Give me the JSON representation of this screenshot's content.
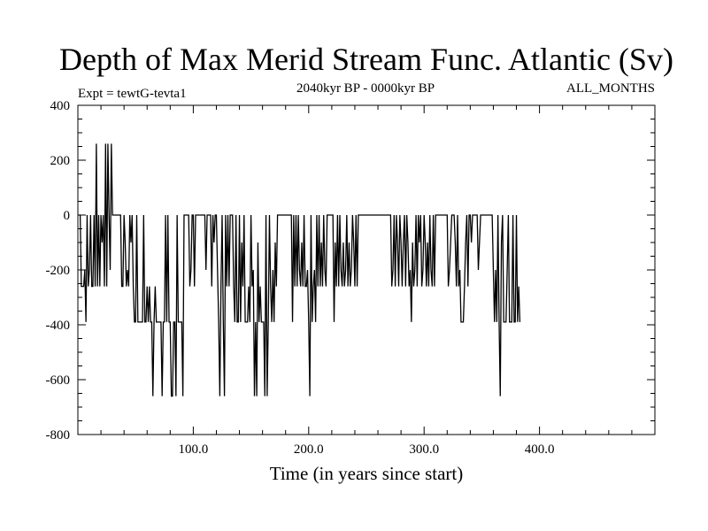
{
  "chart_data": {
    "type": "line",
    "title": "Depth of Max Merid Stream Func. Atlantic (Sv)",
    "subtitle_left": "Expt = tewtG-tevta1",
    "subtitle_center": "2040kyr BP - 0000kyr BP",
    "subtitle_right": "ALL_MONTHS",
    "xlabel": "Time (in years since start)",
    "ylabel": "",
    "xlim": [
      0,
      500
    ],
    "ylim": [
      -800,
      400
    ],
    "x_ticks": [
      {
        "value": 100,
        "label": "100.0"
      },
      {
        "value": 200,
        "label": "200.0"
      },
      {
        "value": 300,
        "label": "300.0"
      },
      {
        "value": 400,
        "label": "400.0"
      }
    ],
    "y_ticks": [
      {
        "value": 400,
        "label": "400"
      },
      {
        "value": 200,
        "label": "200"
      },
      {
        "value": 0,
        "label": "0"
      },
      {
        "value": -200,
        "label": "-200"
      },
      {
        "value": -400,
        "label": "-400"
      },
      {
        "value": -600,
        "label": "-600"
      },
      {
        "value": -800,
        "label": "-800"
      }
    ],
    "grid": false,
    "line_color": "#000000",
    "series": [
      {
        "x_start": 1,
        "x_step": 1,
        "values": [
          0,
          0,
          -260,
          -260,
          -260,
          -200,
          -390,
          0,
          -260,
          -200,
          0,
          -260,
          -260,
          0,
          -260,
          260,
          -260,
          0,
          -260,
          0,
          -100,
          0,
          -260,
          260,
          -260,
          260,
          0,
          -200,
          260,
          0,
          0,
          0,
          0,
          0,
          0,
          0,
          0,
          -260,
          -260,
          0,
          -100,
          -260,
          -200,
          -260,
          0,
          -100,
          0,
          -260,
          -390,
          -390,
          0,
          -390,
          -390,
          -390,
          -390,
          -390,
          0,
          -390,
          -390,
          -260,
          -390,
          -260,
          -390,
          -390,
          -660,
          -390,
          -260,
          -390,
          -390,
          -390,
          -390,
          -390,
          -660,
          -390,
          -390,
          0,
          -390,
          0,
          -390,
          -390,
          -660,
          -660,
          -390,
          -390,
          -660,
          0,
          -390,
          -390,
          -390,
          -390,
          -660,
          0,
          0,
          0,
          0,
          0,
          -260,
          -200,
          0,
          0,
          -260,
          0,
          0,
          0,
          0,
          0,
          0,
          0,
          0,
          0,
          -200,
          0,
          0,
          0,
          0,
          -260,
          0,
          -100,
          0,
          0,
          -200,
          -390,
          -660,
          -260,
          0,
          -390,
          -660,
          0,
          -260,
          0,
          -260,
          0,
          0,
          0,
          -260,
          -390,
          0,
          -390,
          -390,
          0,
          -390,
          -100,
          -260,
          0,
          -390,
          -390,
          -390,
          -260,
          -390,
          0,
          -260,
          -200,
          -660,
          -390,
          -660,
          -100,
          -390,
          -260,
          -390,
          -390,
          -390,
          -660,
          0,
          -660,
          -390,
          0,
          -260,
          -390,
          -200,
          -390,
          -100,
          -260,
          0,
          0,
          0,
          0,
          0,
          0,
          0,
          0,
          0,
          0,
          0,
          0,
          0,
          -390,
          0,
          -260,
          0,
          -260,
          0,
          -200,
          -260,
          -100,
          -260,
          0,
          -260,
          -260,
          -200,
          -390,
          -660,
          0,
          -390,
          -260,
          -200,
          -390,
          0,
          -260,
          0,
          -260,
          -100,
          -260,
          0,
          -200,
          -260,
          0,
          0,
          0,
          0,
          0,
          0,
          -390,
          -100,
          -260,
          0,
          -260,
          0,
          -200,
          -260,
          -100,
          -260,
          -200,
          0,
          -260,
          -100,
          -260,
          -200,
          0,
          -100,
          -260,
          0,
          -260,
          0,
          0,
          0,
          0,
          0,
          0,
          0,
          0,
          0,
          0,
          0,
          0,
          0,
          0,
          0,
          0,
          0,
          0,
          0,
          0,
          0,
          0,
          0,
          0,
          0,
          0,
          0,
          0,
          0,
          -260,
          -200,
          0,
          -260,
          0,
          -100,
          -260,
          0,
          -100,
          -260,
          -100,
          0,
          -260,
          0,
          -100,
          -260,
          -200,
          -390,
          -100,
          -260,
          -200,
          0,
          -260,
          0,
          -100,
          0,
          -260,
          -200,
          0,
          -100,
          -260,
          -100,
          -260,
          0,
          -200,
          -260,
          0,
          -260,
          0,
          0,
          0,
          0,
          0,
          0,
          0,
          0,
          0,
          0,
          0,
          -260,
          -200,
          -100,
          0,
          0,
          0,
          -100,
          -260,
          0,
          -260,
          -200,
          -390,
          -390,
          -390,
          -260,
          -100,
          0,
          -260,
          0,
          0,
          -100,
          0,
          0,
          0,
          0,
          0,
          -200,
          -100,
          0,
          0,
          0,
          0,
          0,
          0,
          0,
          0,
          0,
          0,
          0,
          -200,
          -390,
          -200,
          -390,
          0,
          -390,
          -660,
          -100,
          0,
          -390,
          -390,
          -390,
          -200,
          0,
          -390,
          -390,
          -390,
          0,
          -390,
          -390,
          0,
          -390,
          -260,
          -390
        ]
      }
    ]
  }
}
